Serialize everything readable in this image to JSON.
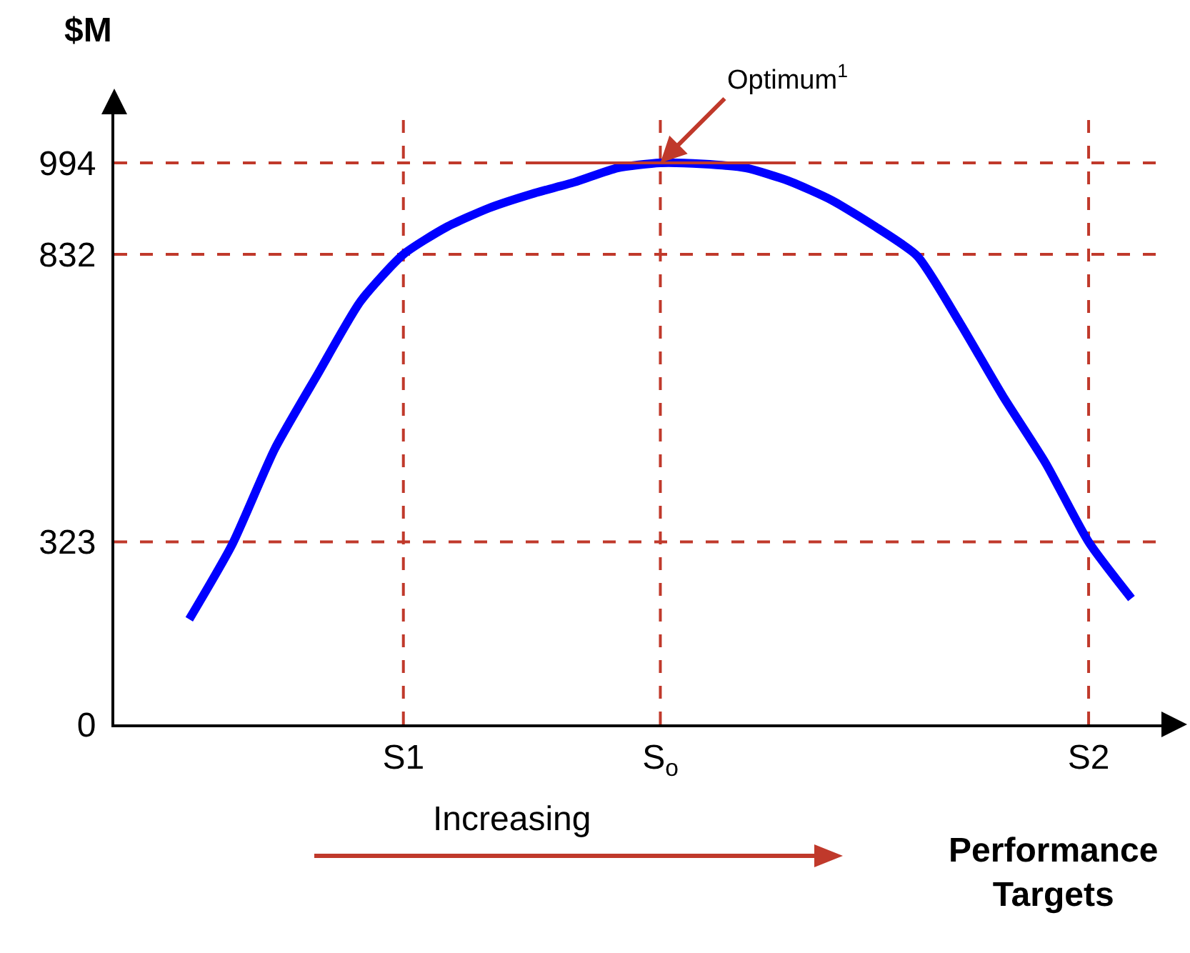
{
  "chart_data": {
    "type": "line",
    "ylabel": "$M",
    "xlabel": "Performance Targets",
    "categories": [
      null,
      null,
      null,
      null,
      null,
      null,
      "S1",
      null,
      null,
      null,
      null,
      null,
      "S$_{o}$",
      null,
      null,
      null,
      null,
      null,
      null,
      null,
      null,
      null,
      "S2",
      null
    ],
    "series": [
      {
        "color": "#0000ff",
        "values": [
          null,
          186,
          318,
          488,
          620,
          749,
          832,
          880,
          914,
          939,
          960,
          985,
          994,
          992,
          985,
          962,
          928,
          882,
          829,
          710,
          581,
          462,
          323,
          223
        ]
      },
      {
        "color": "#c0392b",
        "values": [
          null,
          null,
          null,
          null,
          null,
          null,
          null,
          null,
          null,
          994,
          994,
          994,
          994,
          994,
          994,
          994,
          null,
          null,
          null,
          null,
          null,
          null,
          null,
          null
        ]
      }
    ],
    "ylim": [
      0,
      1080
    ],
    "yticks": [
      0,
      323,
      832,
      994
    ],
    "ref_lines": [
      {
        "axis": "y",
        "value": 994,
        "color": "#c0392b",
        "line_style": "dashed"
      },
      {
        "axis": "y",
        "value": 832,
        "color": "#c0392b",
        "line_style": "dashed"
      },
      {
        "axis": "y",
        "value": 323,
        "color": "#c0392b",
        "line_style": "dashed"
      },
      {
        "axis": "x",
        "value": "S1",
        "color": "#c0392b",
        "line_style": "dashed"
      },
      {
        "axis": "x",
        "value": "S$_{o}$",
        "color": "#c0392b",
        "line_style": "dashed"
      },
      {
        "axis": "x",
        "value": "S2",
        "color": "#c0392b",
        "line_style": "dashed"
      }
    ],
    "annotations": [
      {
        "text": "Optimum$^{1}$",
        "x": "S$_{o}$",
        "y": 994
      },
      "Increasing"
    ],
    "grid": false,
    "line_style": "solid",
    "marker": "none"
  }
}
